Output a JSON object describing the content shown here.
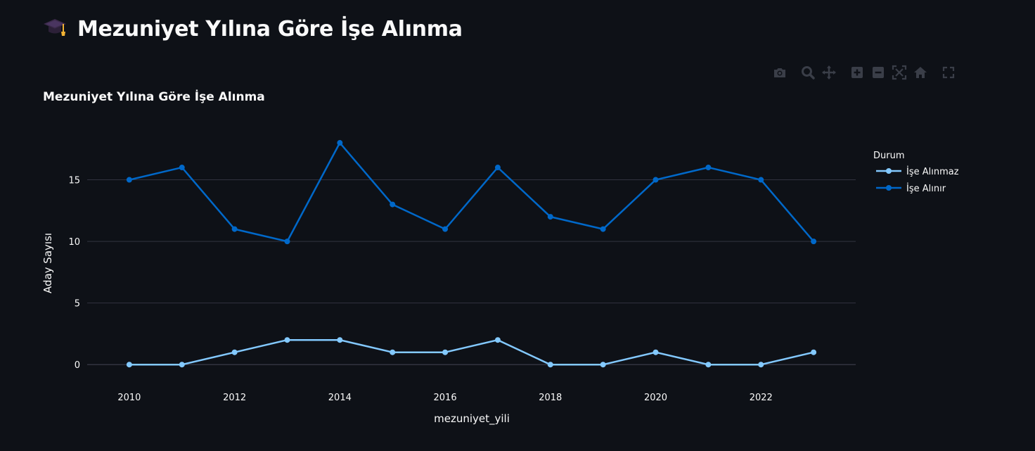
{
  "header": {
    "title": "Mezuniyet Yılına Göre İşe Alınma",
    "icon": "graduation-cap-icon"
  },
  "modebar": {
    "buttons": [
      "camera-icon",
      "zoom-icon",
      "pan-icon",
      "zoom-in-icon",
      "zoom-out-icon",
      "autoscale-icon",
      "reset-axes-icon",
      "fullscreen-icon"
    ]
  },
  "colors": {
    "background": "#0e1117",
    "grid": "#31333f",
    "series_light": "#83c9ff",
    "series_dark": "#0068c9",
    "modebar": "#3a3e48"
  },
  "chart_data": {
    "type": "line",
    "title": "Mezuniyet Yılına Göre İşe Alınma",
    "xlabel": "mezuniyet_yili",
    "ylabel": "Aday Sayısı",
    "x": [
      2010,
      2011,
      2012,
      2013,
      2014,
      2015,
      2016,
      2017,
      2018,
      2019,
      2020,
      2021,
      2022,
      2023
    ],
    "xticks": [
      "2010",
      "2012",
      "2014",
      "2016",
      "2018",
      "2020",
      "2022"
    ],
    "yticks": [
      "0",
      "5",
      "10",
      "15"
    ],
    "xlim": [
      2009.2,
      2023.8
    ],
    "ylim": [
      -1.7,
      20
    ],
    "grid": true,
    "legend": {
      "title": "Durum",
      "position": "right"
    },
    "series": [
      {
        "name": "İşe Alınmaz",
        "color": "#83c9ff",
        "values": [
          0,
          0,
          1,
          2,
          2,
          1,
          1,
          2,
          0,
          0,
          1,
          0,
          0,
          1
        ]
      },
      {
        "name": "İşe Alınır",
        "color": "#0068c9",
        "values": [
          15,
          16,
          11,
          10,
          18,
          13,
          11,
          16,
          12,
          11,
          15,
          16,
          15,
          10
        ]
      }
    ]
  }
}
